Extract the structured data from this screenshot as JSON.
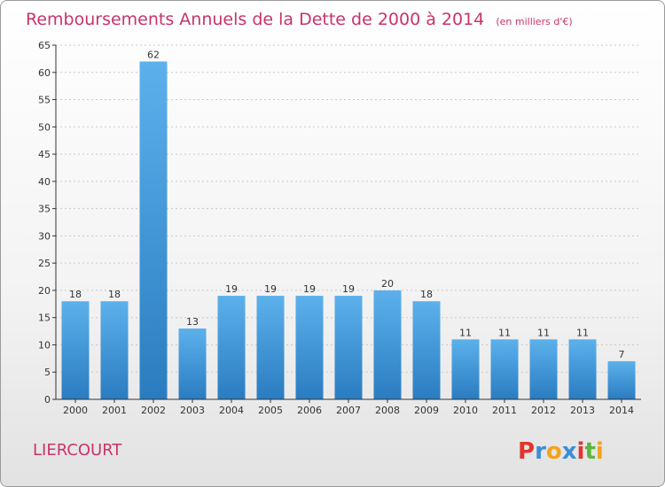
{
  "chart_data": {
    "type": "bar",
    "title": "Remboursements Annuels de la Dette de 2000 à 2014",
    "unit": "(en milliers d'€)",
    "categories": [
      "2000",
      "2001",
      "2002",
      "2003",
      "2004",
      "2005",
      "2006",
      "2007",
      "2008",
      "2009",
      "2010",
      "2011",
      "2012",
      "2013",
      "2014"
    ],
    "values": [
      18,
      18,
      62,
      13,
      19,
      19,
      19,
      19,
      20,
      18,
      11,
      11,
      11,
      11,
      7
    ],
    "ylim": [
      0,
      65
    ],
    "yticks": [
      0,
      5,
      10,
      15,
      20,
      25,
      30,
      35,
      40,
      45,
      50,
      55,
      60,
      65
    ],
    "grid": true,
    "bar_color": "#3f97d9"
  },
  "footer": {
    "commune": "LIERCOURT",
    "logo_text": "Proxiti"
  },
  "colors": {
    "title": "#c8336b",
    "logo": [
      "#e2352e",
      "#3b8ed8",
      "#f2a21d",
      "#3b8ed8",
      "#e2352e",
      "#5cb63a",
      "#f2a21d"
    ]
  }
}
